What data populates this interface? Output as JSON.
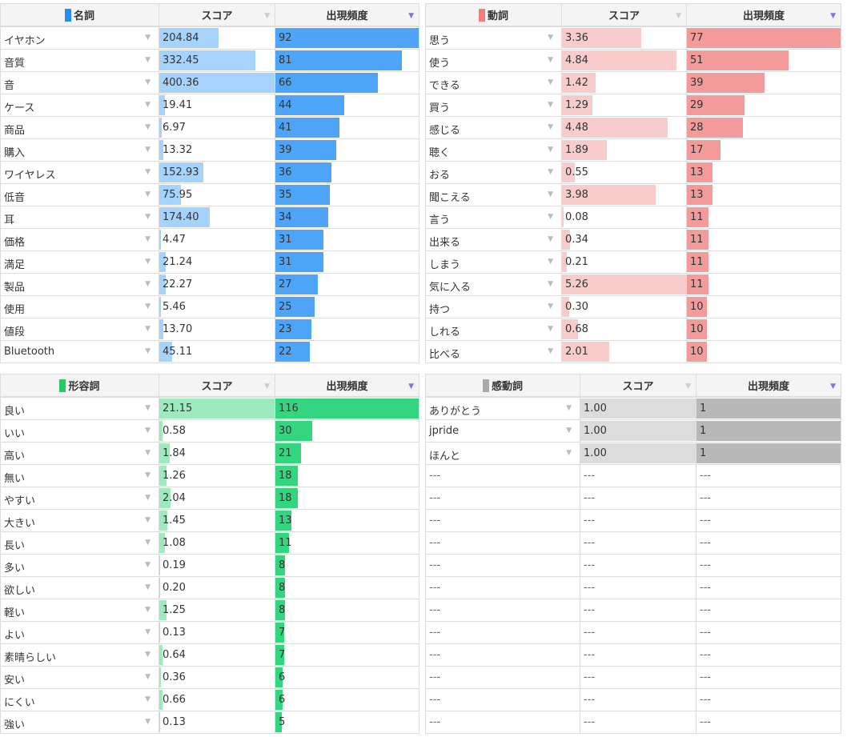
{
  "tables": [
    {
      "title": "名詞",
      "score_label": "スコア",
      "freq_label": "出現頻度",
      "swatch": "#2b8cf0",
      "score_color": "#a6d3fb",
      "freq_color": "#4ea5f8",
      "rows": [
        [
          "イヤホン",
          "204.84",
          "92"
        ],
        [
          "音質",
          "332.45",
          "81"
        ],
        [
          "音",
          "400.36",
          "66"
        ],
        [
          "ケース",
          "19.41",
          "44"
        ],
        [
          "商品",
          "6.97",
          "41"
        ],
        [
          "購入",
          "13.32",
          "39"
        ],
        [
          "ワイヤレス",
          "152.93",
          "36"
        ],
        [
          "低音",
          "75.95",
          "35"
        ],
        [
          "耳",
          "174.40",
          "34"
        ],
        [
          "価格",
          "4.47",
          "31"
        ],
        [
          "満足",
          "21.24",
          "31"
        ],
        [
          "製品",
          "22.27",
          "27"
        ],
        [
          "使用",
          "5.46",
          "25"
        ],
        [
          "値段",
          "13.70",
          "23"
        ],
        [
          "Bluetooth",
          "45.11",
          "22"
        ]
      ]
    },
    {
      "title": "動詞",
      "score_label": "スコア",
      "freq_label": "出現頻度",
      "swatch": "#ee8080",
      "score_color": "#f9cccc",
      "freq_color": "#f39a9a",
      "rows": [
        [
          "思う",
          "3.36",
          "77"
        ],
        [
          "使う",
          "4.84",
          "51"
        ],
        [
          "できる",
          "1.42",
          "39"
        ],
        [
          "買う",
          "1.29",
          "29"
        ],
        [
          "感じる",
          "4.48",
          "28"
        ],
        [
          "聴く",
          "1.89",
          "17"
        ],
        [
          "おる",
          "0.55",
          "13"
        ],
        [
          "聞こえる",
          "3.98",
          "13"
        ],
        [
          "言う",
          "0.08",
          "11"
        ],
        [
          "出来る",
          "0.34",
          "11"
        ],
        [
          "しまう",
          "0.21",
          "11"
        ],
        [
          "気に入る",
          "5.26",
          "11"
        ],
        [
          "持つ",
          "0.30",
          "10"
        ],
        [
          "しれる",
          "0.68",
          "10"
        ],
        [
          "比べる",
          "2.01",
          "10"
        ]
      ]
    },
    {
      "title": "形容詞",
      "score_label": "スコア",
      "freq_label": "出現頻度",
      "swatch": "#22cc66",
      "score_color": "#9deabf",
      "freq_color": "#33d67f",
      "rows": [
        [
          "良い",
          "21.15",
          "116"
        ],
        [
          "いい",
          "0.58",
          "30"
        ],
        [
          "高い",
          "1.84",
          "21"
        ],
        [
          "無い",
          "1.26",
          "18"
        ],
        [
          "やすい",
          "2.04",
          "18"
        ],
        [
          "大きい",
          "1.45",
          "13"
        ],
        [
          "長い",
          "1.08",
          "11"
        ],
        [
          "多い",
          "0.19",
          "8"
        ],
        [
          "欲しい",
          "0.20",
          "8"
        ],
        [
          "軽い",
          "1.25",
          "8"
        ],
        [
          "よい",
          "0.13",
          "7"
        ],
        [
          "素晴らしい",
          "0.64",
          "7"
        ],
        [
          "安い",
          "0.36",
          "6"
        ],
        [
          "にくい",
          "0.66",
          "6"
        ],
        [
          "強い",
          "0.13",
          "5"
        ]
      ]
    },
    {
      "title": "感動詞",
      "score_label": "スコア",
      "freq_label": "出現頻度",
      "swatch": "#aaaaaa",
      "score_color": "#dcdcdc",
      "freq_color": "#b8b8b8",
      "rows": [
        [
          "ありがとう",
          "1.00",
          "1"
        ],
        [
          "jpride",
          "1.00",
          "1"
        ],
        [
          "ほんと",
          "1.00",
          "1"
        ]
      ],
      "empty_rows": 12,
      "empty_text": "---"
    }
  ]
}
